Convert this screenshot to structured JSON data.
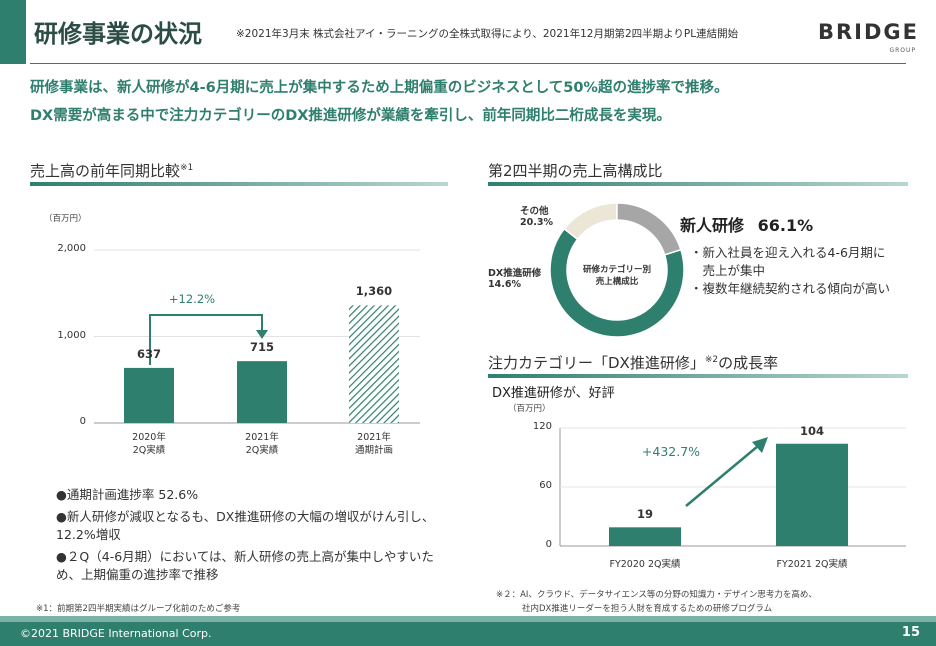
{
  "header": {
    "title": "研修事業の状況",
    "note": "※2021年3月末 株式会社アイ・ラーニングの全株式取得により、2021年12月期第2四半期よりPL連結開始",
    "logo_main": "BRIDGE",
    "logo_sub": "GROUP"
  },
  "lead": {
    "line1": "研修事業は、新人研修が4-6月期に売上が集中するため上期偏重のビジネスとして50%超の進捗率で推移。",
    "line2": "DX需要が高まる中で注力カテゴリーのDX推進研修が業績を牽引し、前年同期比二桁成長を実現。"
  },
  "left": {
    "title": "売上高の前年同期比較",
    "title_sup": "※1",
    "unit": "（百万円）",
    "growth_label": "+12.2%",
    "bullets": [
      "●通期計画進捗率 52.6%",
      "●新人研修が減収となるも、DX推進研修の大幅の増収がけん引し、12.2%増収",
      "●２Q（4-6月期）においては、新人研修の売上高が集中しやすいため、上期偏重の進捗率で推移"
    ],
    "footnote": "※1：前期第2四半期実績はグループ化前のためご参考"
  },
  "right_top": {
    "title": "第2四半期の売上高構成比",
    "center_line1": "研修カテゴリー別",
    "center_line2": "売上構成比",
    "label_other": "その他",
    "label_other_pct": "20.3%",
    "label_dx": "DX推進研修",
    "label_dx_pct": "14.6%",
    "main_label": "新人研修",
    "main_pct": "66.1%",
    "bullets": [
      "・新入社員を迎え入れる4-6月期に",
      "　売上が集中",
      "・複数年継続契約される傾向が高い"
    ]
  },
  "right_bottom": {
    "title": "注力カテゴリー「DX推進研修」",
    "title_sup": "※2",
    "title_tail": "の成長率",
    "subtitle": "DX推進研修が、好評",
    "unit": "（百万円）",
    "growth_label": "+432.7%",
    "footnote1": "※２：AI、クラウド、データサイエンス等の分野の知識力・デザイン思考力を高め、",
    "footnote2": "社内DX推進リーダーを担う人財を育成するための研修プログラム"
  },
  "footer": {
    "copyright": "©2021 BRIDGE International Corp.",
    "page": "15"
  },
  "colors": {
    "accent": "#2f7f6f",
    "accent_light": "#7ab3a6",
    "donut_other": "#a6a6a6",
    "donut_dx": "#ece6d6"
  },
  "chart_data": [
    {
      "type": "bar",
      "categories": [
        "2020年\n2Q実績",
        "2021年\n2Q実績",
        "2021年\n通期計画"
      ],
      "values": [
        637,
        715,
        1360
      ],
      "value_labels": [
        "637",
        "715",
        "1,360"
      ],
      "ylim": [
        0,
        2000
      ],
      "yticks": [
        0,
        1000,
        2000
      ],
      "ytick_labels": [
        "0",
        "1,000",
        "2,000"
      ],
      "ylabel": "（百万円）",
      "hatched": [
        false,
        false,
        true
      ]
    },
    {
      "type": "pie",
      "labels": [
        "新人研修",
        "DX推進研修",
        "その他"
      ],
      "values": [
        66.1,
        14.6,
        20.3
      ]
    },
    {
      "type": "bar",
      "categories": [
        "FY2020 2Q実績",
        "FY2021 2Q実績"
      ],
      "values": [
        19,
        104
      ],
      "value_labels": [
        "19",
        "104"
      ],
      "ylim": [
        0,
        120
      ],
      "yticks": [
        0,
        60,
        120
      ],
      "ytick_labels": [
        "0",
        "60",
        "120"
      ],
      "ylabel": "（百万円）"
    }
  ]
}
